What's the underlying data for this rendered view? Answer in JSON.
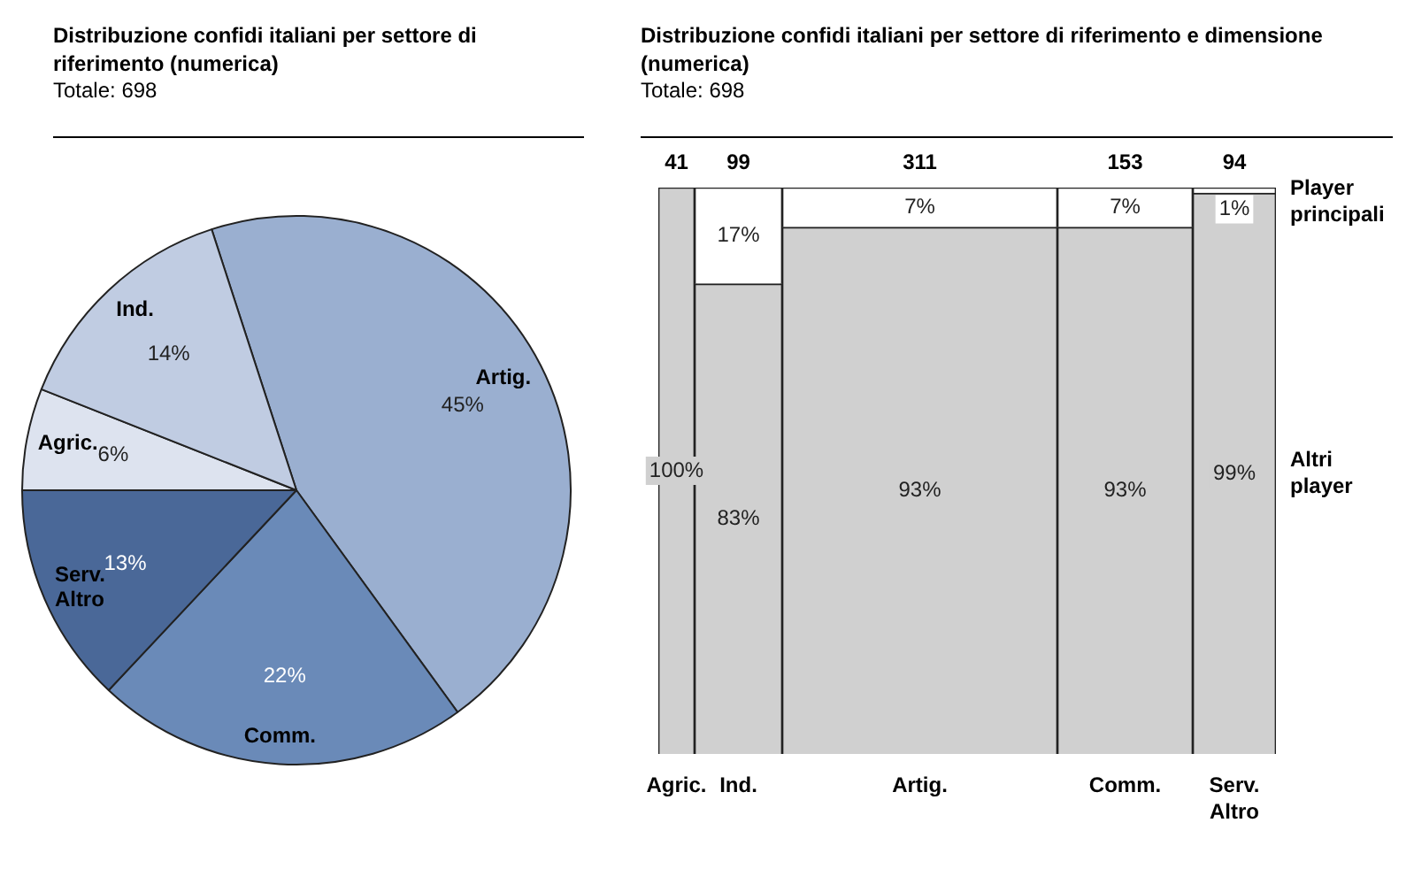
{
  "chart_data": [
    {
      "type": "pie",
      "title": "Distribuzione confidi italiani per settore di riferimento (numerica)",
      "subtitle": "Totale: 698",
      "categories": [
        "Artig.",
        "Comm.",
        "Serv. Altro",
        "Agric.",
        "Ind."
      ],
      "values": [
        45,
        22,
        13,
        6,
        14
      ],
      "value_labels": [
        "45%",
        "22%",
        "13%",
        "6%",
        "14%"
      ],
      "colors": [
        "#9aafd0",
        "#6a8ab8",
        "#4a6898",
        "#dde3ef",
        "#c0cce2"
      ],
      "legend": false
    },
    {
      "type": "bar",
      "title": "Distribuzione confidi italiani per settore di riferimento e dimensione (numerica)",
      "subtitle": "Totale: 698",
      "stacked": true,
      "categories": [
        "Agric.",
        "Ind.",
        "Artig.",
        "Comm.",
        "Serv. Altro"
      ],
      "series": [
        {
          "name": "Altri player",
          "color": "#d0d0d0",
          "values": [
            100,
            83,
            93,
            93,
            99
          ],
          "value_labels": [
            "100%",
            "83%",
            "93%",
            "93%",
            "99%"
          ]
        },
        {
          "name": "Player principali",
          "color": "#ffffff",
          "values": [
            null,
            17,
            7,
            7,
            1
          ],
          "value_labels": [
            null,
            "17%",
            "7%",
            "7%",
            "1%"
          ]
        }
      ],
      "annotations": [
        "41",
        "99",
        "311",
        "153",
        "94"
      ],
      "legend": "right"
    }
  ]
}
